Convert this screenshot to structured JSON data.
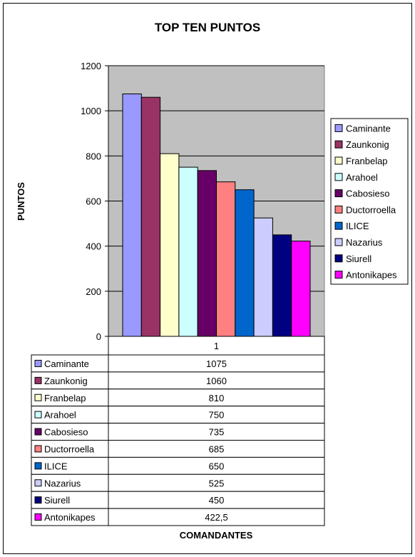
{
  "chart_data": {
    "type": "bar",
    "title": "TOP TEN PUNTOS",
    "xlabel": "COMANDANTES",
    "ylabel": "PUNTOS",
    "categories": [
      "1"
    ],
    "ylim": [
      0,
      1200
    ],
    "yticks": [
      "0",
      "200",
      "400",
      "600",
      "800",
      "1000",
      "1200"
    ],
    "grid": true,
    "legend_position": "right",
    "plot_background": "#c0c0c0",
    "series": [
      {
        "name": "Caminante",
        "values": [
          1075
        ],
        "label": "1075",
        "color": "#9999ff"
      },
      {
        "name": "Zaunkonig",
        "values": [
          1060
        ],
        "label": "1060",
        "color": "#993366"
      },
      {
        "name": "Franbelap",
        "values": [
          810
        ],
        "label": "810",
        "color": "#ffffcc"
      },
      {
        "name": "Arahoel",
        "values": [
          750
        ],
        "label": "750",
        "color": "#ccffff"
      },
      {
        "name": "Cabosieso",
        "values": [
          735
        ],
        "label": "735",
        "color": "#660066"
      },
      {
        "name": "Ductorroella",
        "values": [
          685
        ],
        "label": "685",
        "color": "#ff8080"
      },
      {
        "name": "ILICE",
        "values": [
          650
        ],
        "label": "650",
        "color": "#0066cc"
      },
      {
        "name": "Nazarius",
        "values": [
          525
        ],
        "label": "525",
        "color": "#ccccff"
      },
      {
        "name": "Siurell",
        "values": [
          450
        ],
        "label": "450",
        "color": "#000080"
      },
      {
        "name": "Antonikapes",
        "values": [
          422.5
        ],
        "label": "422,5",
        "color": "#ff00ff"
      }
    ]
  }
}
